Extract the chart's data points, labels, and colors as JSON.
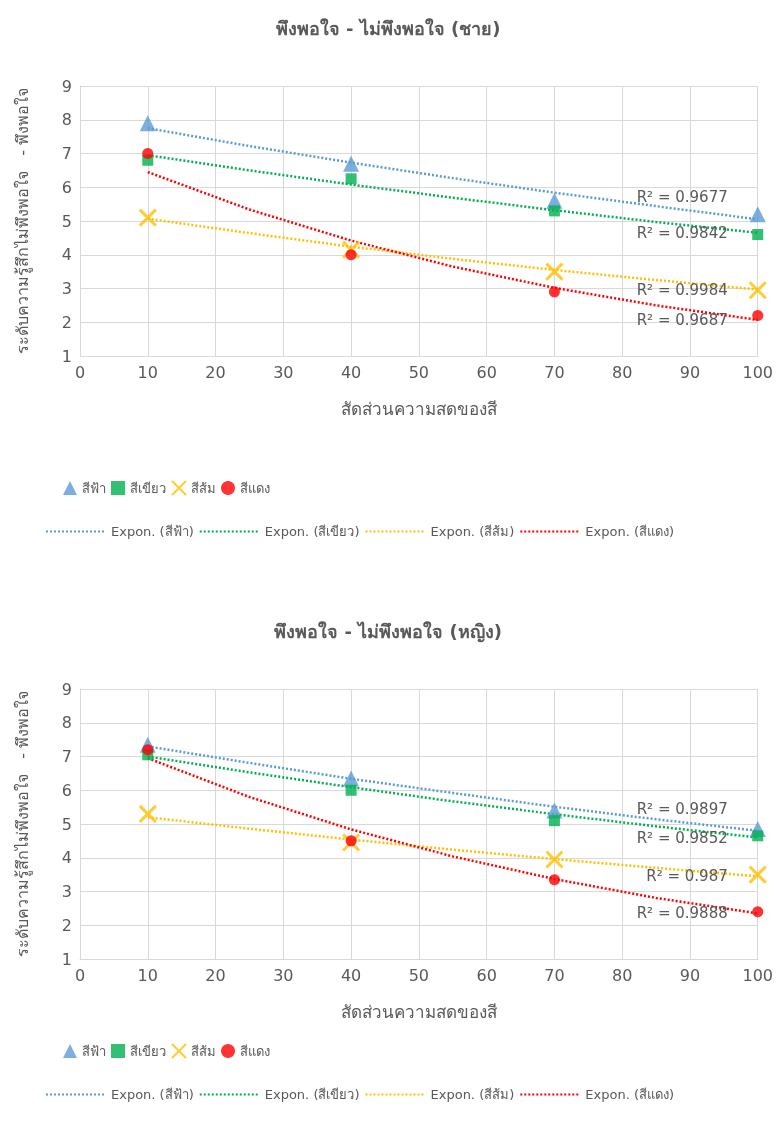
{
  "chart_data": [
    {
      "type": "scatter",
      "title": "พึงพอใจ - ไม่พึงพอใจ (ชาย)",
      "xlabel": "สัดส่วนความสดของสี",
      "ylabel": "ระดับความรู้สึกไม่พึงพอใจ   - พึงพอใจ",
      "xlim": [
        0,
        100
      ],
      "xticks": [
        0,
        10,
        20,
        30,
        40,
        50,
        60,
        70,
        80,
        90,
        100
      ],
      "ylim": [
        1,
        9
      ],
      "yticks": [
        1,
        2,
        3,
        4,
        5,
        6,
        7,
        8,
        9
      ],
      "grid": true,
      "legend": "bottom",
      "x": [
        10,
        40,
        70,
        100
      ],
      "series": [
        {
          "name": "สีฟ้า",
          "color": "#5b9bd5",
          "marker": "triangle",
          "values": [
            7.9,
            6.7,
            5.6,
            5.2
          ]
        },
        {
          "name": "สีเขียว",
          "color": "#00b050",
          "marker": "square",
          "values": [
            6.8,
            6.25,
            5.3,
            4.6
          ]
        },
        {
          "name": "สีส้ม",
          "color": "#ffc000",
          "marker": "cross",
          "values": [
            5.1,
            4.15,
            3.5,
            2.95
          ]
        },
        {
          "name": "สีแดง",
          "color": "#ff0000",
          "marker": "circle",
          "values": [
            7.0,
            4.0,
            2.9,
            2.2
          ]
        },
        {
          "name": "Expon. (สีฟ้า)",
          "type": "line",
          "color": "#5b9bd5",
          "marker": "none",
          "line_style": "dotted",
          "x": [
            10,
            25,
            40,
            55,
            70,
            85,
            100
          ],
          "values": [
            7.75,
            7.22,
            6.73,
            6.27,
            5.84,
            5.44,
            5.05
          ]
        },
        {
          "name": "Expon. (สีเขียว)",
          "type": "line",
          "color": "#00b050",
          "marker": "none",
          "line_style": "dotted",
          "x": [
            10,
            25,
            40,
            55,
            70,
            85,
            100
          ],
          "values": [
            6.95,
            6.5,
            6.08,
            5.69,
            5.32,
            4.97,
            4.65
          ]
        },
        {
          "name": "Expon. (สีส้ม)",
          "type": "line",
          "color": "#ffc000",
          "marker": "none",
          "line_style": "dotted",
          "x": [
            10,
            25,
            40,
            55,
            70,
            85,
            100
          ],
          "values": [
            5.07,
            4.64,
            4.24,
            3.88,
            3.55,
            3.25,
            2.97
          ]
        },
        {
          "name": "Expon. (สีแดง)",
          "type": "line",
          "color": "#ff0000",
          "marker": "none",
          "line_style": "dotted",
          "x": [
            10,
            25,
            40,
            55,
            70,
            85,
            100
          ],
          "values": [
            6.45,
            5.34,
            4.42,
            3.65,
            3.02,
            2.5,
            2.07
          ]
        }
      ],
      "annotations": [
        "R² = 0.9677",
        "R² = 0.9842",
        "R² = 0.9984",
        "R² = 0.9687"
      ]
    },
    {
      "type": "scatter",
      "title": "พึงพอใจ - ไม่พึงพอใจ (หญิง)",
      "xlabel": "สัดส่วนความสดของสี",
      "ylabel": "ระดับความรู้สึกไม่พึงพอใจ   - พึงพอใจ",
      "xlim": [
        0,
        100
      ],
      "xticks": [
        0,
        10,
        20,
        30,
        40,
        50,
        60,
        70,
        80,
        90,
        100
      ],
      "ylim": [
        1,
        9
      ],
      "yticks": [
        1,
        2,
        3,
        4,
        5,
        6,
        7,
        8,
        9
      ],
      "grid": true,
      "legend": "bottom",
      "x": [
        10,
        40,
        70,
        100
      ],
      "series": [
        {
          "name": "สีฟ้า",
          "color": "#5b9bd5",
          "marker": "triangle",
          "values": [
            7.35,
            6.35,
            5.4,
            4.85
          ]
        },
        {
          "name": "สีเขียว",
          "color": "#00b050",
          "marker": "square",
          "values": [
            7.05,
            6.0,
            5.1,
            4.65
          ]
        },
        {
          "name": "สีส้ม",
          "color": "#ffc000",
          "marker": "cross",
          "values": [
            5.3,
            4.45,
            3.95,
            3.5
          ]
        },
        {
          "name": "สีแดง",
          "color": "#ff0000",
          "marker": "circle",
          "values": [
            7.2,
            4.5,
            3.35,
            2.4
          ]
        },
        {
          "name": "Expon. (สีฟ้า)",
          "type": "line",
          "color": "#5b9bd5",
          "marker": "none",
          "line_style": "dotted",
          "x": [
            10,
            25,
            40,
            55,
            70,
            85,
            100
          ],
          "values": [
            7.3,
            6.81,
            6.34,
            5.92,
            5.51,
            5.14,
            4.8
          ]
        },
        {
          "name": "Expon. (สีเขียว)",
          "type": "line",
          "color": "#00b050",
          "marker": "none",
          "line_style": "dotted",
          "x": [
            10,
            25,
            40,
            55,
            70,
            85,
            100
          ],
          "values": [
            7.0,
            6.53,
            6.09,
            5.67,
            5.29,
            4.93,
            4.6
          ]
        },
        {
          "name": "Expon. (สีส้ม)",
          "type": "line",
          "color": "#ffc000",
          "marker": "none",
          "line_style": "dotted",
          "x": [
            10,
            25,
            40,
            55,
            70,
            85,
            100
          ],
          "values": [
            5.2,
            4.86,
            4.54,
            4.24,
            3.96,
            3.7,
            3.45
          ]
        },
        {
          "name": "Expon. (สีแดง)",
          "type": "line",
          "color": "#ff0000",
          "marker": "none",
          "line_style": "dotted",
          "x": [
            10,
            25,
            40,
            55,
            70,
            85,
            100
          ],
          "values": [
            6.95,
            5.8,
            4.84,
            4.04,
            3.37,
            2.81,
            2.35
          ]
        }
      ],
      "annotations": [
        "R² = 0.9897",
        "R² = 0.9852",
        "R² = 0.987",
        "R² = 0.9888"
      ]
    }
  ]
}
